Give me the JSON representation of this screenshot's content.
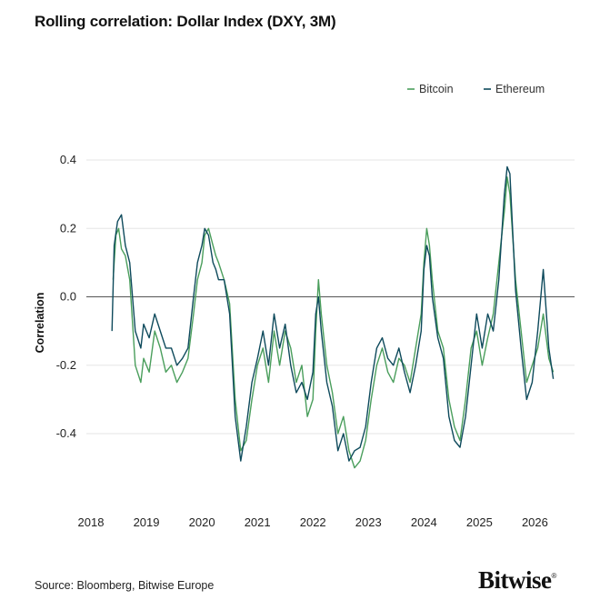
{
  "title": "Rolling correlation: Dollar Index (DXY, 3M)",
  "source": "Source: Bloomberg, Bitwise Europe",
  "logo": {
    "text": "Bitwise",
    "mark": "®"
  },
  "chart_data": {
    "type": "line",
    "title": "Rolling correlation: Dollar Index (DXY, 3M)",
    "xlabel": "",
    "ylabel": "Correlation",
    "xlim": [
      2018.0,
      2026.55
    ],
    "ylim": [
      -0.6,
      0.45
    ],
    "x_ticks": [
      2018,
      2019,
      2020,
      2021,
      2022,
      2023,
      2024,
      2025,
      2026
    ],
    "x_tick_labels": [
      "2018",
      "2019",
      "2020",
      "2021",
      "2022",
      "2023",
      "2024",
      "2025",
      "2026"
    ],
    "y_ticks": [
      0.4,
      0.2,
      0.0,
      -0.2,
      -0.4
    ],
    "y_tick_labels": [
      "0.4",
      "0.2",
      "0.0",
      "-0.2",
      "-0.4"
    ],
    "grid": "horizontal",
    "zero_line": true,
    "legend": "top-right",
    "series": [
      {
        "name": "Bitcoin",
        "color": "#4a9e5c",
        "x": [
          2018.4,
          2018.45,
          2018.5,
          2018.55,
          2018.62,
          2018.7,
          2018.8,
          2018.9,
          2018.95,
          2019.05,
          2019.15,
          2019.25,
          2019.35,
          2019.45,
          2019.55,
          2019.65,
          2019.75,
          2019.85,
          2019.92,
          2020.0,
          2020.05,
          2020.12,
          2020.2,
          2020.25,
          2020.3,
          2020.4,
          2020.5,
          2020.6,
          2020.7,
          2020.8,
          2020.9,
          2021.0,
          2021.1,
          2021.2,
          2021.3,
          2021.4,
          2021.5,
          2021.6,
          2021.7,
          2021.8,
          2021.9,
          2022.0,
          2022.05,
          2022.1,
          2022.15,
          2022.25,
          2022.35,
          2022.45,
          2022.55,
          2022.65,
          2022.75,
          2022.85,
          2022.95,
          2023.05,
          2023.15,
          2023.25,
          2023.35,
          2023.45,
          2023.55,
          2023.65,
          2023.75,
          2023.85,
          2023.95,
          2024.0,
          2024.05,
          2024.1,
          2024.15,
          2024.25,
          2024.35,
          2024.45,
          2024.55,
          2024.65,
          2024.75,
          2024.85,
          2024.95,
          2025.05,
          2025.15,
          2025.25,
          2025.35,
          2025.45,
          2025.5,
          2025.55,
          2025.65,
          2025.75,
          2025.85,
          2025.95,
          2026.05,
          2026.15,
          2026.25,
          2026.33
        ],
        "y": [
          0.05,
          0.18,
          0.2,
          0.14,
          0.12,
          0.05,
          -0.2,
          -0.25,
          -0.18,
          -0.22,
          -0.1,
          -0.15,
          -0.22,
          -0.2,
          -0.25,
          -0.22,
          -0.18,
          -0.05,
          0.05,
          0.1,
          0.18,
          0.2,
          0.15,
          0.12,
          0.1,
          0.05,
          -0.02,
          -0.3,
          -0.45,
          -0.42,
          -0.3,
          -0.2,
          -0.15,
          -0.25,
          -0.1,
          -0.2,
          -0.1,
          -0.15,
          -0.25,
          -0.2,
          -0.35,
          -0.3,
          -0.1,
          0.05,
          -0.05,
          -0.2,
          -0.28,
          -0.4,
          -0.35,
          -0.45,
          -0.5,
          -0.48,
          -0.42,
          -0.3,
          -0.2,
          -0.15,
          -0.22,
          -0.25,
          -0.18,
          -0.2,
          -0.25,
          -0.15,
          -0.05,
          0.1,
          0.2,
          0.15,
          0.05,
          -0.1,
          -0.15,
          -0.3,
          -0.38,
          -0.42,
          -0.3,
          -0.15,
          -0.1,
          -0.2,
          -0.12,
          -0.05,
          0.1,
          0.25,
          0.35,
          0.3,
          0.05,
          -0.1,
          -0.25,
          -0.2,
          -0.15,
          -0.05,
          -0.18,
          -0.22
        ]
      },
      {
        "name": "Ethereum",
        "color": "#0e4a5c",
        "x": [
          2018.38,
          2018.42,
          2018.48,
          2018.55,
          2018.62,
          2018.7,
          2018.8,
          2018.9,
          2018.95,
          2019.05,
          2019.15,
          2019.25,
          2019.35,
          2019.45,
          2019.55,
          2019.65,
          2019.75,
          2019.85,
          2019.92,
          2020.0,
          2020.05,
          2020.12,
          2020.2,
          2020.25,
          2020.3,
          2020.4,
          2020.5,
          2020.6,
          2020.7,
          2020.8,
          2020.9,
          2021.0,
          2021.1,
          2021.2,
          2021.3,
          2021.4,
          2021.5,
          2021.6,
          2021.7,
          2021.8,
          2021.9,
          2022.0,
          2022.05,
          2022.1,
          2022.15,
          2022.25,
          2022.35,
          2022.45,
          2022.55,
          2022.65,
          2022.75,
          2022.85,
          2022.95,
          2023.05,
          2023.15,
          2023.25,
          2023.35,
          2023.45,
          2023.55,
          2023.65,
          2023.75,
          2023.85,
          2023.95,
          2024.0,
          2024.05,
          2024.1,
          2024.15,
          2024.25,
          2024.35,
          2024.45,
          2024.55,
          2024.65,
          2024.75,
          2024.85,
          2024.95,
          2025.05,
          2025.15,
          2025.25,
          2025.35,
          2025.45,
          2025.5,
          2025.55,
          2025.65,
          2025.75,
          2025.85,
          2025.95,
          2026.05,
          2026.15,
          2026.25,
          2026.33
        ],
        "y": [
          -0.1,
          0.15,
          0.22,
          0.24,
          0.15,
          0.1,
          -0.1,
          -0.15,
          -0.08,
          -0.12,
          -0.05,
          -0.1,
          -0.15,
          -0.15,
          -0.2,
          -0.18,
          -0.15,
          0.0,
          0.1,
          0.15,
          0.2,
          0.18,
          0.1,
          0.08,
          0.05,
          0.05,
          -0.05,
          -0.35,
          -0.48,
          -0.38,
          -0.25,
          -0.18,
          -0.1,
          -0.2,
          -0.05,
          -0.15,
          -0.08,
          -0.2,
          -0.28,
          -0.25,
          -0.3,
          -0.22,
          -0.05,
          0.0,
          -0.1,
          -0.25,
          -0.32,
          -0.45,
          -0.4,
          -0.48,
          -0.45,
          -0.44,
          -0.38,
          -0.25,
          -0.15,
          -0.12,
          -0.18,
          -0.2,
          -0.15,
          -0.22,
          -0.28,
          -0.2,
          -0.1,
          0.08,
          0.15,
          0.12,
          0.0,
          -0.12,
          -0.18,
          -0.35,
          -0.42,
          -0.44,
          -0.35,
          -0.2,
          -0.05,
          -0.15,
          -0.05,
          -0.1,
          0.05,
          0.3,
          0.38,
          0.36,
          0.02,
          -0.15,
          -0.3,
          -0.25,
          -0.1,
          0.08,
          -0.15,
          -0.24
        ]
      }
    ]
  }
}
